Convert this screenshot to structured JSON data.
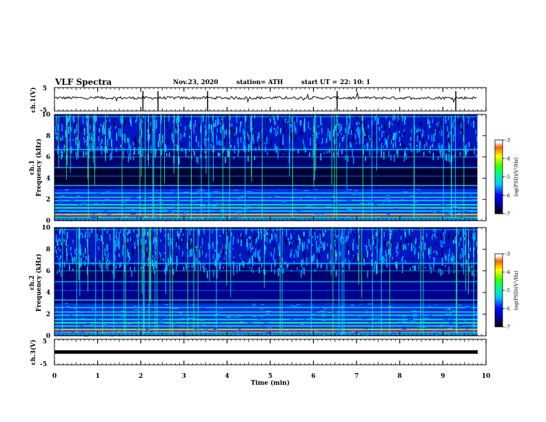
{
  "header": {
    "title": "VLF Spectra",
    "date": "Nov.23, 2020",
    "station": "station= ATH",
    "start_label": "start  UT =",
    "start_time": "22: 10: 1"
  },
  "chart_data": [
    {
      "type": "line",
      "name": "waveform-ch1",
      "ylabel": "ch.1(V)",
      "y_ticks": [
        "5",
        "-5"
      ],
      "ylim": [
        -5,
        5
      ],
      "xlim": [
        0,
        10
      ],
      "description_level": 0.6
    },
    {
      "type": "heatmap",
      "name": "spectrogram-ch1",
      "ylabel": "ch.1",
      "ylabel2": "Frequency  (kHz)",
      "y_ticks": [
        "0",
        "2",
        "4",
        "6",
        "8",
        "10"
      ],
      "ylim": [
        0,
        10
      ],
      "xlim": [
        0,
        10
      ],
      "colorbar": {
        "ticks": [
          "-3",
          "-4",
          "-5",
          "-6",
          "-7"
        ],
        "label": "log(PSD)(V²/Hz)",
        "range": [
          -7,
          -3
        ]
      }
    },
    {
      "type": "heatmap",
      "name": "spectrogram-ch2",
      "ylabel": "ch.2",
      "ylabel2": "Frequency  (kHz)",
      "y_ticks": [
        "0",
        "2",
        "4",
        "6",
        "8",
        "10"
      ],
      "ylim": [
        0,
        10
      ],
      "xlim": [
        0,
        10
      ],
      "colorbar": {
        "ticks": [
          "-3",
          "-4",
          "-5",
          "-6",
          "-7"
        ],
        "label": "log(PSD)(V²/Hz)",
        "range": [
          -7,
          -3
        ]
      }
    },
    {
      "type": "line",
      "name": "waveform-ch3",
      "ylabel": "ch.3(V)",
      "y_ticks": [
        "5",
        "-5"
      ],
      "ylim": [
        -5,
        5
      ],
      "xlim": [
        0,
        10
      ],
      "level": 0.0
    }
  ],
  "x_axis": {
    "ticks": [
      "0",
      "1",
      "2",
      "3",
      "4",
      "5",
      "6",
      "7",
      "8",
      "9",
      "10"
    ],
    "label": "Time  (min)",
    "data_end": 9.8
  }
}
